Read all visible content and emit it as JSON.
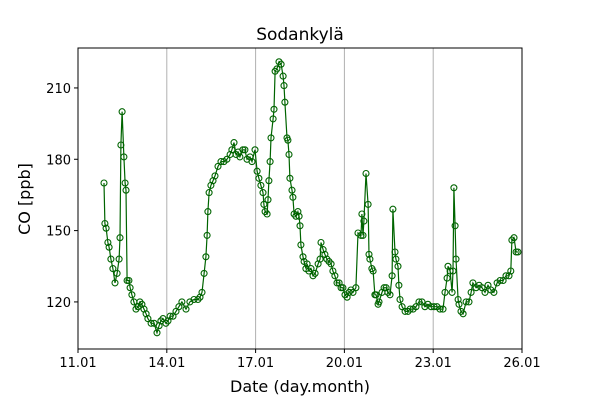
{
  "chart_data": {
    "type": "line",
    "title": "Sodankylä",
    "xlabel": "Date (day.month)",
    "ylabel": "CO [ppb]",
    "xlim": [
      11,
      26
    ],
    "ylim": [
      100.2,
      226.8
    ],
    "xticks": [
      {
        "value": 11,
        "label": "11.01"
      },
      {
        "value": 14,
        "label": "14.01"
      },
      {
        "value": 17,
        "label": "17.01"
      },
      {
        "value": 20,
        "label": "20.01"
      },
      {
        "value": 23,
        "label": "23.01"
      },
      {
        "value": 26,
        "label": "26.01"
      }
    ],
    "yticks": [
      {
        "value": 120,
        "label": "120"
      },
      {
        "value": 150,
        "label": "150"
      },
      {
        "value": 180,
        "label": "180"
      },
      {
        "value": 210,
        "label": "210"
      }
    ],
    "grid": "vertical gridlines at x ticks",
    "color": "#006400",
    "marker": "open circle",
    "series": [
      {
        "name": "CO",
        "x": [
          11.88,
          11.91,
          11.95,
          12.01,
          12.05,
          12.11,
          12.18,
          12.25,
          12.32,
          12.39,
          12.42,
          12.45,
          12.49,
          12.55,
          12.59,
          12.62,
          12.66,
          12.72,
          12.76,
          12.82,
          12.89,
          12.96,
          13.03,
          13.09,
          13.16,
          13.23,
          13.3,
          13.36,
          13.47,
          13.57,
          13.67,
          13.74,
          13.8,
          13.87,
          13.97,
          14.04,
          14.11,
          14.21,
          14.31,
          14.41,
          14.51,
          14.65,
          14.78,
          14.92,
          15.05,
          15.12,
          15.19,
          15.26,
          15.32,
          15.36,
          15.39,
          15.43,
          15.49,
          15.56,
          15.63,
          15.73,
          15.83,
          15.93,
          16.03,
          16.14,
          16.2,
          16.27,
          16.34,
          16.41,
          16.47,
          16.57,
          16.64,
          16.71,
          16.81,
          16.88,
          16.98,
          17.05,
          17.11,
          17.18,
          17.25,
          17.28,
          17.32,
          17.39,
          17.42,
          17.45,
          17.49,
          17.52,
          17.59,
          17.62,
          17.66,
          17.72,
          17.79,
          17.86,
          17.93,
          17.96,
          17.99,
          18.06,
          18.09,
          18.13,
          18.16,
          18.23,
          18.26,
          18.3,
          18.36,
          18.43,
          18.47,
          18.5,
          18.53,
          18.6,
          18.64,
          18.7,
          18.74,
          18.8,
          18.87,
          18.94,
          19.01,
          19.11,
          19.18,
          19.21,
          19.28,
          19.34,
          19.41,
          19.48,
          19.55,
          19.61,
          19.68,
          19.75,
          19.82,
          19.89,
          19.95,
          20.02,
          20.09,
          20.16,
          20.22,
          20.29,
          20.39,
          20.46,
          20.56,
          20.59,
          20.63,
          20.66,
          20.73,
          20.8,
          20.83,
          20.86,
          20.93,
          20.97,
          21.03,
          21.07,
          21.14,
          21.17,
          21.27,
          21.34,
          21.41,
          21.47,
          21.54,
          21.61,
          21.64,
          21.71,
          21.74,
          21.81,
          21.84,
          21.88,
          21.95,
          22.05,
          22.15,
          22.22,
          22.32,
          22.42,
          22.52,
          22.62,
          22.72,
          22.82,
          22.93,
          23.03,
          23.13,
          23.23,
          23.33,
          23.4,
          23.47,
          23.5,
          23.57,
          23.64,
          23.67,
          23.7,
          23.74,
          23.77,
          23.84,
          23.87,
          23.94,
          24.01,
          24.11,
          24.21,
          24.28,
          24.34,
          24.45,
          24.55,
          24.65,
          24.75,
          24.85,
          24.95,
          25.05,
          25.16,
          25.26,
          25.36,
          25.46,
          25.56,
          25.62,
          25.66,
          25.73,
          25.8,
          25.86
        ],
        "y": [
          170,
          153,
          151,
          145,
          143,
          138,
          134,
          128,
          132,
          138,
          147,
          186,
          200,
          181,
          170,
          167,
          129,
          129,
          126,
          123,
          120,
          117,
          118,
          120,
          119,
          117,
          115,
          113,
          111,
          111,
          107,
          110,
          112,
          113,
          111,
          112,
          114,
          114,
          116,
          118,
          120,
          117,
          120,
          121,
          121,
          122,
          124,
          132,
          139,
          148,
          158,
          166,
          169,
          171,
          173,
          177,
          179,
          179,
          180,
          182,
          184,
          187,
          182,
          183,
          181,
          184,
          184,
          180,
          181,
          179,
          184,
          175,
          172,
          169,
          166,
          161,
          158,
          157,
          163,
          171,
          179,
          189,
          197,
          201,
          217,
          218,
          221,
          220,
          215,
          211,
          204,
          189,
          188,
          182,
          172,
          167,
          164,
          157,
          156,
          158,
          156,
          152,
          144,
          139,
          137,
          134,
          136,
          133,
          134,
          131,
          132,
          136,
          138,
          145,
          142,
          140,
          138,
          137,
          136,
          133,
          131,
          128,
          128,
          126,
          126,
          123,
          122,
          124,
          125,
          124,
          126,
          149,
          148,
          157,
          148,
          154,
          174,
          161,
          140,
          138,
          134,
          133,
          123,
          123,
          119,
          120,
          124,
          126,
          126,
          124,
          123,
          131,
          159,
          141,
          138,
          135,
          127,
          121,
          118,
          116,
          116,
          117,
          117,
          118,
          120,
          120,
          118,
          119,
          118,
          118,
          118,
          117,
          117,
          124,
          130,
          135,
          133,
          124,
          133,
          168,
          152,
          138,
          121,
          119,
          116,
          115,
          120,
          120,
          124,
          128,
          126,
          127,
          126,
          124,
          127,
          125,
          124,
          128,
          129,
          129,
          131,
          131,
          133,
          146,
          147,
          141,
          141
        ]
      }
    ]
  }
}
